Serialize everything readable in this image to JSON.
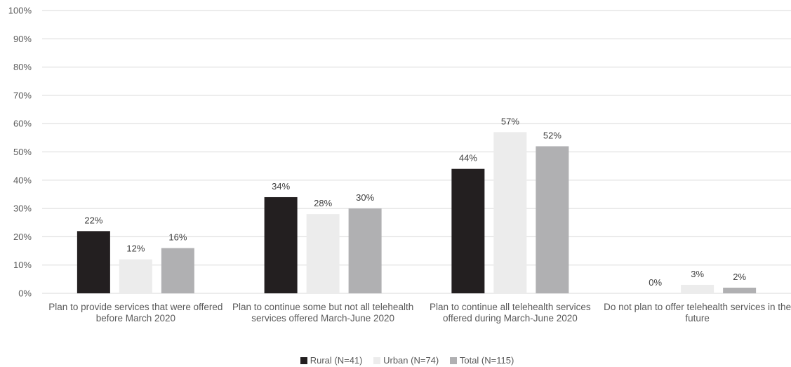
{
  "chart_data": {
    "type": "bar",
    "categories": [
      "Plan to provide services that were offered before March 2020",
      "Plan to continue some but not all telehealth services offered March-June 2020",
      "Plan to continue all telehealth services offered during March-June 2020",
      "Do not plan to offer telehealth services in the future"
    ],
    "series": [
      {
        "name": "Rural (N=41)",
        "color": "#231f20",
        "values": [
          22,
          34,
          44,
          0
        ],
        "labels": [
          "22%",
          "34%",
          "44%",
          "0%"
        ]
      },
      {
        "name": "Urban (N=74)",
        "color": "#ececec",
        "values": [
          12,
          28,
          57,
          3
        ],
        "labels": [
          "12%",
          "28%",
          "57%",
          "3%"
        ]
      },
      {
        "name": "Total (N=115)",
        "color": "#b0b0b2",
        "values": [
          16,
          30,
          52,
          2
        ],
        "labels": [
          "16%",
          "30%",
          "52%",
          "2%"
        ]
      }
    ],
    "yticks": [
      "0%",
      "10%",
      "20%",
      "30%",
      "40%",
      "50%",
      "60%",
      "70%",
      "80%",
      "90%",
      "100%"
    ],
    "ylim": [
      0,
      100
    ],
    "grid": true,
    "legend_position": "bottom",
    "title": "",
    "xlabel": "",
    "ylabel": ""
  }
}
